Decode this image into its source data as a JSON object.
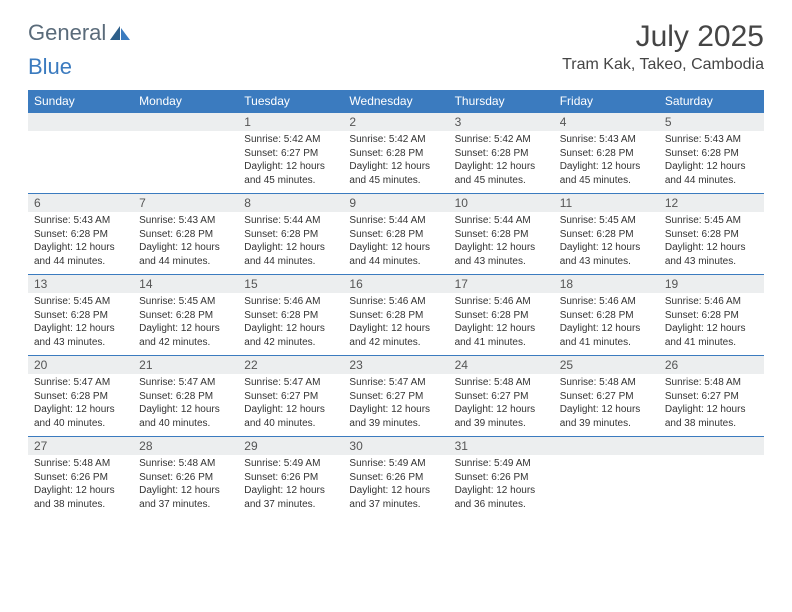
{
  "logo": {
    "general": "General",
    "blue": "Blue"
  },
  "header": {
    "month_title": "July 2025",
    "location": "Tram Kak, Takeo, Cambodia"
  },
  "colors": {
    "header_bg": "#3b7bbf",
    "header_text": "#ffffff",
    "daynum_bg": "#eceeef",
    "border": "#3b7bbf",
    "logo_general": "#5a6b7a",
    "logo_blue": "#3b7bbf"
  },
  "day_headers": [
    "Sunday",
    "Monday",
    "Tuesday",
    "Wednesday",
    "Thursday",
    "Friday",
    "Saturday"
  ],
  "weeks": [
    [
      null,
      null,
      {
        "n": "1",
        "sr": "5:42 AM",
        "ss": "6:27 PM",
        "dl": "12 hours and 45 minutes."
      },
      {
        "n": "2",
        "sr": "5:42 AM",
        "ss": "6:28 PM",
        "dl": "12 hours and 45 minutes."
      },
      {
        "n": "3",
        "sr": "5:42 AM",
        "ss": "6:28 PM",
        "dl": "12 hours and 45 minutes."
      },
      {
        "n": "4",
        "sr": "5:43 AM",
        "ss": "6:28 PM",
        "dl": "12 hours and 45 minutes."
      },
      {
        "n": "5",
        "sr": "5:43 AM",
        "ss": "6:28 PM",
        "dl": "12 hours and 44 minutes."
      }
    ],
    [
      {
        "n": "6",
        "sr": "5:43 AM",
        "ss": "6:28 PM",
        "dl": "12 hours and 44 minutes."
      },
      {
        "n": "7",
        "sr": "5:43 AM",
        "ss": "6:28 PM",
        "dl": "12 hours and 44 minutes."
      },
      {
        "n": "8",
        "sr": "5:44 AM",
        "ss": "6:28 PM",
        "dl": "12 hours and 44 minutes."
      },
      {
        "n": "9",
        "sr": "5:44 AM",
        "ss": "6:28 PM",
        "dl": "12 hours and 44 minutes."
      },
      {
        "n": "10",
        "sr": "5:44 AM",
        "ss": "6:28 PM",
        "dl": "12 hours and 43 minutes."
      },
      {
        "n": "11",
        "sr": "5:45 AM",
        "ss": "6:28 PM",
        "dl": "12 hours and 43 minutes."
      },
      {
        "n": "12",
        "sr": "5:45 AM",
        "ss": "6:28 PM",
        "dl": "12 hours and 43 minutes."
      }
    ],
    [
      {
        "n": "13",
        "sr": "5:45 AM",
        "ss": "6:28 PM",
        "dl": "12 hours and 43 minutes."
      },
      {
        "n": "14",
        "sr": "5:45 AM",
        "ss": "6:28 PM",
        "dl": "12 hours and 42 minutes."
      },
      {
        "n": "15",
        "sr": "5:46 AM",
        "ss": "6:28 PM",
        "dl": "12 hours and 42 minutes."
      },
      {
        "n": "16",
        "sr": "5:46 AM",
        "ss": "6:28 PM",
        "dl": "12 hours and 42 minutes."
      },
      {
        "n": "17",
        "sr": "5:46 AM",
        "ss": "6:28 PM",
        "dl": "12 hours and 41 minutes."
      },
      {
        "n": "18",
        "sr": "5:46 AM",
        "ss": "6:28 PM",
        "dl": "12 hours and 41 minutes."
      },
      {
        "n": "19",
        "sr": "5:46 AM",
        "ss": "6:28 PM",
        "dl": "12 hours and 41 minutes."
      }
    ],
    [
      {
        "n": "20",
        "sr": "5:47 AM",
        "ss": "6:28 PM",
        "dl": "12 hours and 40 minutes."
      },
      {
        "n": "21",
        "sr": "5:47 AM",
        "ss": "6:28 PM",
        "dl": "12 hours and 40 minutes."
      },
      {
        "n": "22",
        "sr": "5:47 AM",
        "ss": "6:27 PM",
        "dl": "12 hours and 40 minutes."
      },
      {
        "n": "23",
        "sr": "5:47 AM",
        "ss": "6:27 PM",
        "dl": "12 hours and 39 minutes."
      },
      {
        "n": "24",
        "sr": "5:48 AM",
        "ss": "6:27 PM",
        "dl": "12 hours and 39 minutes."
      },
      {
        "n": "25",
        "sr": "5:48 AM",
        "ss": "6:27 PM",
        "dl": "12 hours and 39 minutes."
      },
      {
        "n": "26",
        "sr": "5:48 AM",
        "ss": "6:27 PM",
        "dl": "12 hours and 38 minutes."
      }
    ],
    [
      {
        "n": "27",
        "sr": "5:48 AM",
        "ss": "6:26 PM",
        "dl": "12 hours and 38 minutes."
      },
      {
        "n": "28",
        "sr": "5:48 AM",
        "ss": "6:26 PM",
        "dl": "12 hours and 37 minutes."
      },
      {
        "n": "29",
        "sr": "5:49 AM",
        "ss": "6:26 PM",
        "dl": "12 hours and 37 minutes."
      },
      {
        "n": "30",
        "sr": "5:49 AM",
        "ss": "6:26 PM",
        "dl": "12 hours and 37 minutes."
      },
      {
        "n": "31",
        "sr": "5:49 AM",
        "ss": "6:26 PM",
        "dl": "12 hours and 36 minutes."
      },
      null,
      null
    ]
  ],
  "labels": {
    "sunrise": "Sunrise:",
    "sunset": "Sunset:",
    "daylight": "Daylight:"
  }
}
